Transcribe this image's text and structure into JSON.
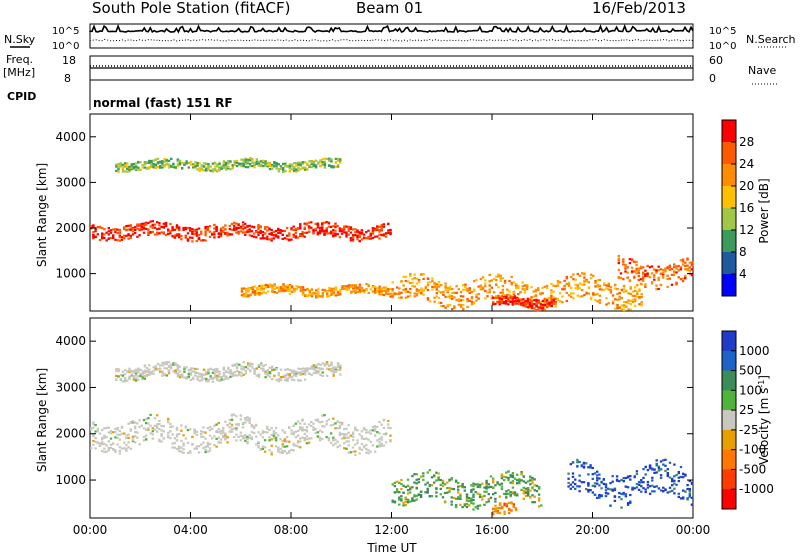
{
  "header": {
    "title": "South Pole Station (fitACF)",
    "beam": "Beam 01",
    "date": "16/Feb/2013"
  },
  "panels": {
    "nsky": {
      "label": "N.Sky",
      "left_ticks": [
        "10^5",
        "10^0"
      ],
      "right_label": "N.Search",
      "right_ticks": [
        "10^5",
        "10^0"
      ]
    },
    "freq": {
      "label_line1": "Freq.",
      "label_line2": "[MHz]",
      "left_ticks": [
        "18",
        "8"
      ],
      "right_label": "Nave",
      "right_ticks": [
        "60",
        "0"
      ]
    },
    "cpid": {
      "label": "CPID",
      "value": "normal (fast) 151 RF"
    }
  },
  "colorbars": {
    "power": {
      "title": "Power [dB]",
      "ticks": [
        "28",
        "24",
        "20",
        "16",
        "12",
        "8",
        "4"
      ],
      "colors": [
        "#ff0000",
        "#ff5a00",
        "#ff8c00",
        "#ffc000",
        "#a0c846",
        "#3c9a5a",
        "#1e5aa0",
        "#0000ff"
      ]
    },
    "velocity": {
      "title": "Velocity [m s^-1]",
      "ticks": [
        "1000",
        "500",
        "100",
        "25",
        "-25",
        "-100",
        "-500",
        "-1000"
      ],
      "colors": [
        "#1e3cc8",
        "#1e64c8",
        "#3c8c5a",
        "#50b43c",
        "#c8c8c0",
        "#e6a000",
        "#ff7800",
        "#ff3c00",
        "#ff0000"
      ]
    }
  },
  "chart_data": [
    {
      "type": "heatmap",
      "title": "Power",
      "xlabel": "",
      "ylabel": "Slant Range [km]",
      "x_ticks": [
        "00:00",
        "04:00",
        "08:00",
        "12:00",
        "16:00",
        "20:00",
        "00:00"
      ],
      "y_ticks": [
        "4000",
        "3000",
        "2000",
        "1000"
      ],
      "xlim": [
        0,
        24
      ],
      "ylim": [
        180,
        4500
      ],
      "features": [
        {
          "x": [
            0,
            12
          ],
          "y": [
            1800,
            2100
          ],
          "value_db": 28
        },
        {
          "x": [
            1,
            10
          ],
          "y": [
            3300,
            3500
          ],
          "value_db": 12
        },
        {
          "x": [
            6,
            12
          ],
          "y": [
            550,
            750
          ],
          "value_db": 20
        },
        {
          "x": [
            12,
            22
          ],
          "y": [
            350,
            900
          ],
          "value_db": 20
        },
        {
          "x": [
            16,
            18.5
          ],
          "y": [
            300,
            500
          ],
          "value_db": 28
        },
        {
          "x": [
            21,
            24
          ],
          "y": [
            800,
            1300
          ],
          "value_db": 24
        }
      ]
    },
    {
      "type": "heatmap",
      "title": "Velocity",
      "xlabel": "Time UT",
      "ylabel": "Slant Range [km]",
      "x_ticks": [
        "00:00",
        "04:00",
        "08:00",
        "12:00",
        "16:00",
        "20:00",
        "00:00"
      ],
      "y_ticks": [
        "4000",
        "3000",
        "2000",
        "1000"
      ],
      "xlim": [
        0,
        24
      ],
      "ylim": [
        180,
        4500
      ],
      "features": [
        {
          "x": [
            0,
            12
          ],
          "y": [
            1700,
            2300
          ],
          "value_ms": 0
        },
        {
          "x": [
            1,
            10
          ],
          "y": [
            3200,
            3500
          ],
          "value_ms": 0
        },
        {
          "x": [
            12,
            18
          ],
          "y": [
            500,
            1100
          ],
          "value_ms": 100
        },
        {
          "x": [
            16,
            17
          ],
          "y": [
            250,
            500
          ],
          "value_ms": -500
        },
        {
          "x": [
            19,
            24
          ],
          "y": [
            600,
            1300
          ],
          "value_ms": 1000
        }
      ]
    }
  ]
}
